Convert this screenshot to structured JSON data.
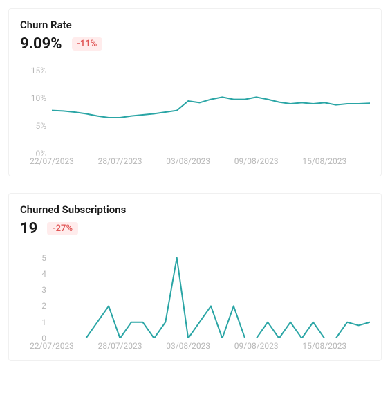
{
  "charts": [
    {
      "id": "churn-rate",
      "title": "Churn Rate",
      "value": "9.09%",
      "delta": "-11%",
      "delta_color": "#e05555",
      "delta_bg": "#ffecec",
      "type": "line",
      "line_color": "#2aa5a5",
      "line_width": 2,
      "background_color": "#ffffff",
      "axis_text_color": "#b8b8b8",
      "y": {
        "min": 0,
        "max": 16,
        "ticks": [
          {
            "v": 0,
            "label": "0%"
          },
          {
            "v": 5,
            "label": "5%"
          },
          {
            "v": 10,
            "label": "10%"
          },
          {
            "v": 15,
            "label": "15%"
          }
        ]
      },
      "x": {
        "count": 29,
        "ticks": [
          {
            "i": 0,
            "label": "22/07/2023"
          },
          {
            "i": 6,
            "label": "28/07/2023"
          },
          {
            "i": 12,
            "label": "03/08/2023"
          },
          {
            "i": 18,
            "label": "09/08/2023"
          },
          {
            "i": 24,
            "label": "15/08/2023"
          }
        ]
      },
      "series": [
        7.8,
        7.7,
        7.5,
        7.2,
        6.8,
        6.5,
        6.5,
        6.8,
        7.0,
        7.2,
        7.5,
        7.8,
        9.5,
        9.2,
        9.8,
        10.2,
        9.8,
        9.8,
        10.2,
        9.8,
        9.3,
        9.0,
        9.2,
        9.0,
        9.2,
        8.8,
        9.0,
        9.0,
        9.1
      ]
    },
    {
      "id": "churned-subscriptions",
      "title": "Churned Subscriptions",
      "value": "19",
      "delta": "-27%",
      "delta_color": "#e05555",
      "delta_bg": "#ffecec",
      "type": "line",
      "line_color": "#2aa5a5",
      "line_width": 2,
      "background_color": "#ffffff",
      "axis_text_color": "#b8b8b8",
      "y": {
        "min": 0,
        "max": 5.5,
        "ticks": [
          {
            "v": 0,
            "label": "0"
          },
          {
            "v": 1,
            "label": "1"
          },
          {
            "v": 2,
            "label": "2"
          },
          {
            "v": 3,
            "label": "3"
          },
          {
            "v": 4,
            "label": "4"
          },
          {
            "v": 5,
            "label": "5"
          }
        ]
      },
      "x": {
        "count": 29,
        "ticks": [
          {
            "i": 0,
            "label": "22/07/2023"
          },
          {
            "i": 6,
            "label": "28/07/2023"
          },
          {
            "i": 12,
            "label": "03/08/2023"
          },
          {
            "i": 18,
            "label": "09/08/2023"
          },
          {
            "i": 24,
            "label": "15/08/2023"
          }
        ]
      },
      "series": [
        0,
        0,
        0,
        0,
        1,
        2,
        0,
        1,
        1,
        0,
        1,
        5,
        0,
        1,
        2,
        0,
        2,
        0,
        0,
        1,
        0,
        1,
        0,
        1,
        0,
        0,
        1,
        0.8,
        1
      ]
    }
  ]
}
